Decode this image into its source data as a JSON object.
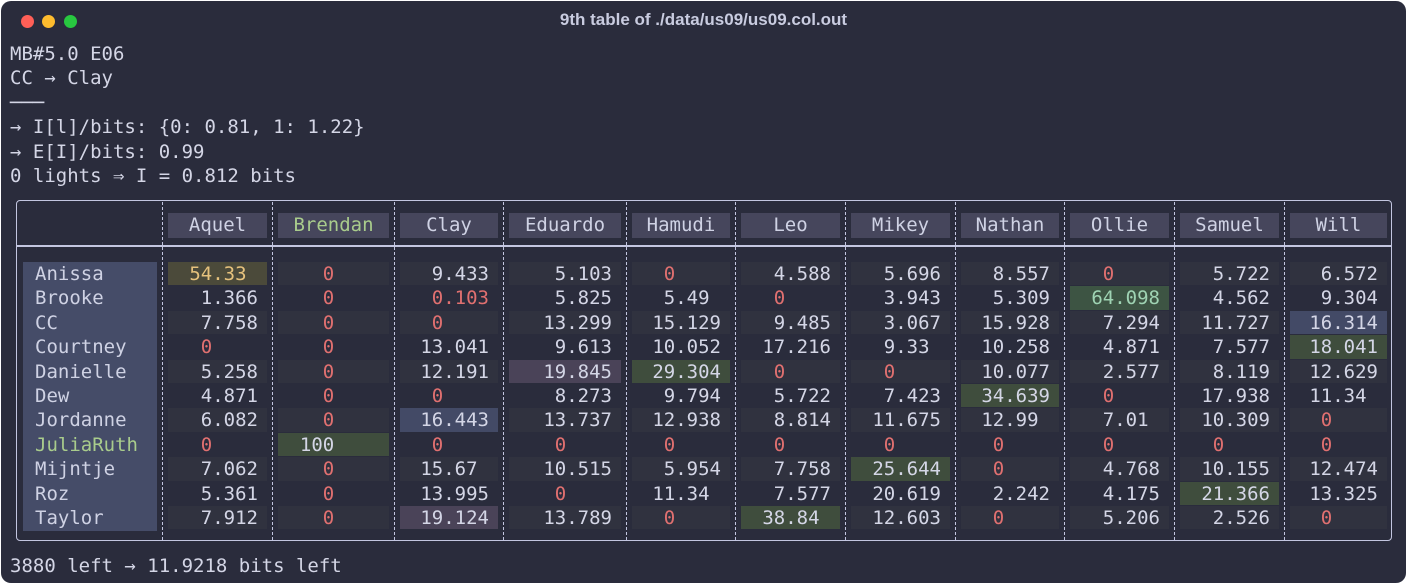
{
  "window": {
    "title": "9th table of ./data/us09/us09.col.out"
  },
  "lines": [
    "MB#5.0 E06",
    "CC → Clay",
    "───",
    "→ I[l]/bits: {0: 0.81, 1: 1.22}",
    "→ E[I]/bits: 0.99",
    "0 lights ⇒ I = 0.812 bits"
  ],
  "table": {
    "columns": [
      "Aquel",
      "Brendan",
      "Clay",
      "Eduardo",
      "Hamudi",
      "Leo",
      "Mikey",
      "Nathan",
      "Ollie",
      "Samuel",
      "Will"
    ],
    "rows": [
      {
        "name": "Anissa",
        "values": [
          54.33,
          0,
          9.433,
          5.103,
          0,
          4.588,
          5.696,
          8.557,
          0,
          5.722,
          6.572
        ]
      },
      {
        "name": "Brooke",
        "values": [
          1.366,
          0,
          0.103,
          5.825,
          5.49,
          0,
          3.943,
          5.309,
          64.098,
          4.562,
          9.304
        ]
      },
      {
        "name": "CC",
        "values": [
          7.758,
          0,
          0,
          13.299,
          15.129,
          9.485,
          3.067,
          15.928,
          7.294,
          11.727,
          16.314
        ]
      },
      {
        "name": "Courtney",
        "values": [
          0,
          0,
          13.041,
          9.613,
          10.052,
          17.216,
          9.33,
          10.258,
          4.871,
          7.577,
          18.041
        ]
      },
      {
        "name": "Danielle",
        "values": [
          5.258,
          0,
          12.191,
          19.845,
          29.304,
          0,
          0,
          10.077,
          2.577,
          8.119,
          12.629
        ]
      },
      {
        "name": "Dew",
        "values": [
          4.871,
          0,
          0,
          8.273,
          9.794,
          5.722,
          7.423,
          34.639,
          0,
          17.938,
          11.34
        ]
      },
      {
        "name": "Jordanne",
        "values": [
          6.082,
          0,
          16.443,
          13.737,
          12.938,
          8.814,
          11.675,
          12.99,
          7.01,
          10.309,
          0
        ]
      },
      {
        "name": "JuliaRuth",
        "values": [
          0,
          100,
          0,
          0,
          0,
          0,
          0,
          0,
          0,
          0,
          0
        ]
      },
      {
        "name": "Mijntje",
        "values": [
          7.062,
          0,
          15.67,
          10.515,
          5.954,
          7.758,
          25.644,
          0,
          4.768,
          10.155,
          12.474
        ]
      },
      {
        "name": "Roz",
        "values": [
          5.361,
          0,
          13.995,
          0,
          11.34,
          7.577,
          20.619,
          2.242,
          4.175,
          21.366,
          13.325
        ]
      },
      {
        "name": "Taylor",
        "values": [
          7.912,
          0,
          19.124,
          13.789,
          0,
          38.84,
          12.603,
          0,
          5.206,
          2.526,
          0
        ]
      }
    ]
  },
  "footer": "3880 left → 11.9218 bits left"
}
